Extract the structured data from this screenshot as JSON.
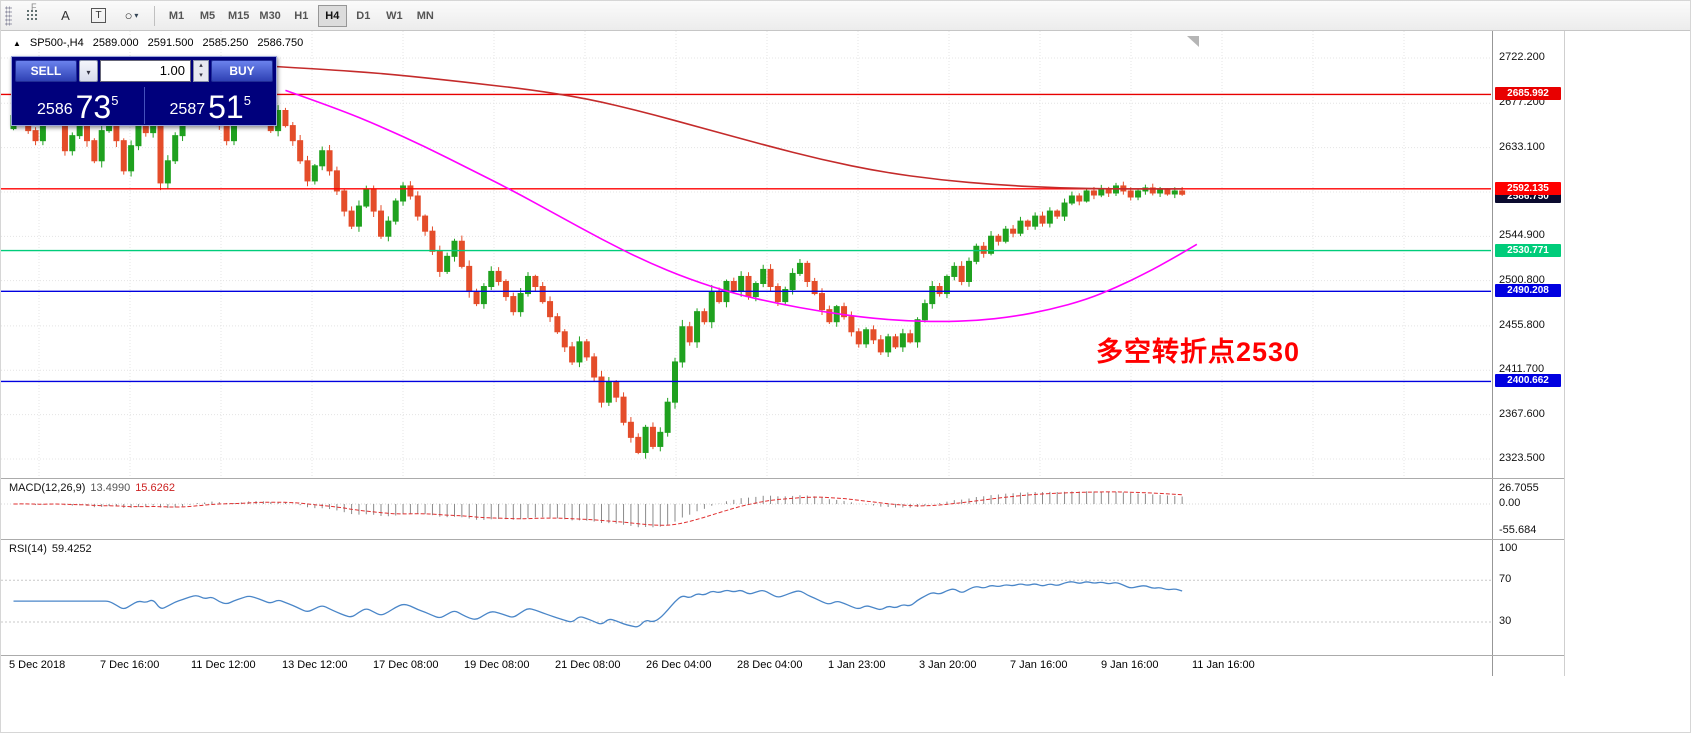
{
  "toolbar": {
    "overflow_label": "F",
    "dropdown_glyph": "▾",
    "tools": [
      {
        "name": "crosshair-grid",
        "style": "dots"
      },
      {
        "name": "arrow-cursor",
        "glyph": "A"
      },
      {
        "name": "text-label",
        "glyph": "T",
        "boxed": true
      },
      {
        "name": "shapes",
        "glyph": "○",
        "dropdown": true
      }
    ],
    "timeframes": [
      "M1",
      "M5",
      "M15",
      "M30",
      "H1",
      "H4",
      "D1",
      "W1",
      "MN"
    ],
    "active_timeframe": "H4"
  },
  "chart": {
    "symbol_marker": "▲",
    "symbol": "SP500-,H4",
    "open": "2589.000",
    "high": "2591.500",
    "low": "2585.250",
    "close": "2586.750",
    "annotation": "多空转折点2530"
  },
  "trade_panel": {
    "sell_label": "SELL",
    "buy_label": "BUY",
    "volume": "1.00",
    "sell_price": {
      "small": "2586",
      "big": "73",
      "sup": "5"
    },
    "buy_price": {
      "small": "2587",
      "big": "51",
      "sup": "5"
    }
  },
  "chart_data": {
    "type": "candlestick",
    "symbol": "SP500-",
    "timeframe": "H4",
    "first_open": 2652,
    "closes": [
      2665,
      2680,
      2650,
      2640,
      2672,
      2690,
      2660,
      2630,
      2645,
      2665,
      2640,
      2620,
      2650,
      2668,
      2640,
      2610,
      2635,
      2660,
      2648,
      2670,
      2598,
      2620,
      2645,
      2662,
      2680,
      2692,
      2670,
      2685,
      2655,
      2640,
      2660,
      2675,
      2690,
      2680,
      2665,
      2650,
      2670,
      2655,
      2640,
      2620,
      2600,
      2615,
      2630,
      2610,
      2590,
      2570,
      2555,
      2575,
      2592,
      2570,
      2545,
      2560,
      2580,
      2595,
      2585,
      2565,
      2550,
      2530,
      2510,
      2525,
      2540,
      2515,
      2490,
      2478,
      2495,
      2510,
      2500,
      2485,
      2470,
      2488,
      2505,
      2495,
      2480,
      2465,
      2450,
      2435,
      2420,
      2440,
      2425,
      2405,
      2380,
      2400,
      2385,
      2360,
      2345,
      2330,
      2355,
      2336,
      2350,
      2380,
      2420,
      2455,
      2440,
      2470,
      2460,
      2490,
      2480,
      2500,
      2490,
      2505,
      2485,
      2498,
      2512,
      2495,
      2480,
      2492,
      2508,
      2518,
      2500,
      2488,
      2472,
      2460,
      2475,
      2465,
      2450,
      2438,
      2452,
      2442,
      2430,
      2445,
      2435,
      2448,
      2440,
      2462,
      2478,
      2495,
      2488,
      2505,
      2515,
      2500,
      2520,
      2535,
      2528,
      2545,
      2540,
      2552,
      2548,
      2560,
      2555,
      2565,
      2558,
      2570,
      2565,
      2578,
      2585,
      2580,
      2590,
      2586,
      2592,
      2588,
      2595,
      2590,
      2584,
      2590,
      2593,
      2588,
      2591,
      2587,
      2590,
      2586.75
    ],
    "ma_red": [
      [
        35,
        2714
      ],
      [
        42,
        2711
      ],
      [
        50,
        2707
      ],
      [
        58,
        2701
      ],
      [
        64,
        2696
      ],
      [
        70,
        2691
      ],
      [
        78,
        2682
      ],
      [
        86,
        2668
      ],
      [
        94,
        2652
      ],
      [
        102,
        2636
      ],
      [
        110,
        2621
      ],
      [
        118,
        2609
      ],
      [
        126,
        2601
      ],
      [
        134,
        2596
      ],
      [
        142,
        2593
      ],
      [
        150,
        2592
      ],
      [
        159,
        2592
      ]
    ],
    "ma_magenta": [
      [
        37,
        2690
      ],
      [
        44,
        2672
      ],
      [
        50,
        2654
      ],
      [
        56,
        2634
      ],
      [
        62,
        2612
      ],
      [
        68,
        2590
      ],
      [
        74,
        2566
      ],
      [
        80,
        2542
      ],
      [
        86,
        2520
      ],
      [
        92,
        2502
      ],
      [
        98,
        2488
      ],
      [
        104,
        2478
      ],
      [
        110,
        2470
      ],
      [
        116,
        2464
      ],
      [
        121,
        2461
      ],
      [
        126,
        2460
      ],
      [
        131,
        2461
      ],
      [
        136,
        2465
      ],
      [
        141,
        2472
      ],
      [
        146,
        2482
      ],
      [
        150,
        2494
      ],
      [
        154,
        2508
      ],
      [
        158,
        2524
      ],
      [
        161,
        2537
      ]
    ],
    "hlines": [
      {
        "price": 2685.992,
        "label": "2685.992",
        "color": "#e80000"
      },
      {
        "price": 2592.135,
        "label": "2592.135",
        "color": "#ff0000"
      },
      {
        "price": 2530.771,
        "label": "2530.771",
        "color": "#00cc7a"
      },
      {
        "price": 2490.208,
        "label": "2490.208",
        "color": "#0000e0"
      },
      {
        "price": 2400.662,
        "label": "2400.662",
        "color": "#0000e0"
      }
    ],
    "current_price": {
      "value": 2586.75,
      "label": "2586.750",
      "bg": "#0a0a2e"
    },
    "price_ticks": [
      2722.2,
      2677.2,
      2633.1,
      2589.0,
      2544.9,
      2500.8,
      2455.8,
      2411.7,
      2367.6,
      2323.5
    ],
    "time_labels": [
      "5 Dec 2018",
      "7 Dec 16:00",
      "11 Dec 12:00",
      "13 Dec 12:00",
      "17 Dec 08:00",
      "19 Dec 08:00",
      "21 Dec 08:00",
      "26 Dec 04:00",
      "28 Dec 04:00",
      "1 Jan 23:00",
      "3 Jan 20:00",
      "7 Jan 16:00",
      "9 Jan 16:00",
      "11 Jan 16:00"
    ],
    "macd": {
      "label": "MACD(12,26,9)",
      "value_main": "13.4990",
      "value_signal": "15.6262",
      "fast": 12,
      "slow": 26,
      "signal": 9,
      "axis": [
        "26.7055",
        "0.00",
        "-55.684"
      ]
    },
    "rsi": {
      "label": "RSI(14)",
      "value": "59.4252",
      "period": 14,
      "levels": [
        70,
        30
      ],
      "axis": [
        "100",
        "70",
        "30"
      ]
    },
    "colors": {
      "up": "#1fa11f",
      "down": "#e44d2a",
      "ma_red": "#c42b2b",
      "ma_magenta": "#ff00ff",
      "rsi": "#4a86c8",
      "macd_hist": "#8a8a8a",
      "macd_signal": "#e03030",
      "annotation": "#ff0000"
    }
  }
}
